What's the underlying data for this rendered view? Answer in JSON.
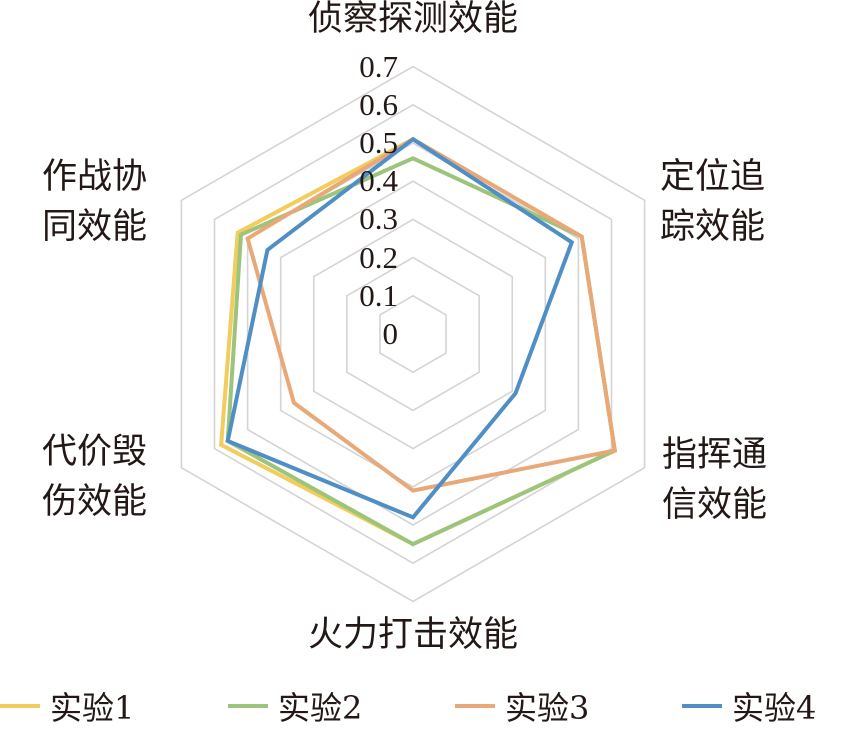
{
  "chart_data": {
    "type": "radar",
    "axes": [
      "侦察探测效能",
      "定位追踪效能",
      "指挥通信效能",
      "火力打击效能",
      "代价毁伤效能",
      "作战协同效能"
    ],
    "axis_label_lines": [
      [
        "侦察探测效能"
      ],
      [
        "定位追",
        "踪效能"
      ],
      [
        "指挥通",
        "信效能"
      ],
      [
        "火力打击效能"
      ],
      [
        "代价毁",
        "伤效能"
      ],
      [
        "作战协",
        "同效能"
      ]
    ],
    "rlim": [
      0,
      0.7
    ],
    "ticks": [
      "0",
      "0.1",
      "0.2",
      "0.3",
      "0.4",
      "0.5",
      "0.6",
      "0.7"
    ],
    "grid": true,
    "legend_position": "bottom",
    "series": [
      {
        "name": "实验1",
        "color": "#f2cc5c",
        "values": [
          0.51,
          0.51,
          0.61,
          0.55,
          0.58,
          0.53
        ]
      },
      {
        "name": "实验2",
        "color": "#9cc47a",
        "values": [
          0.46,
          0.51,
          0.61,
          0.55,
          0.56,
          0.52
        ]
      },
      {
        "name": "实验3",
        "color": "#e8a878",
        "values": [
          0.51,
          0.51,
          0.61,
          0.41,
          0.36,
          0.5
        ]
      },
      {
        "name": "实验4",
        "color": "#4f8fc6",
        "values": [
          0.51,
          0.48,
          0.31,
          0.48,
          0.56,
          0.44
        ]
      }
    ]
  }
}
